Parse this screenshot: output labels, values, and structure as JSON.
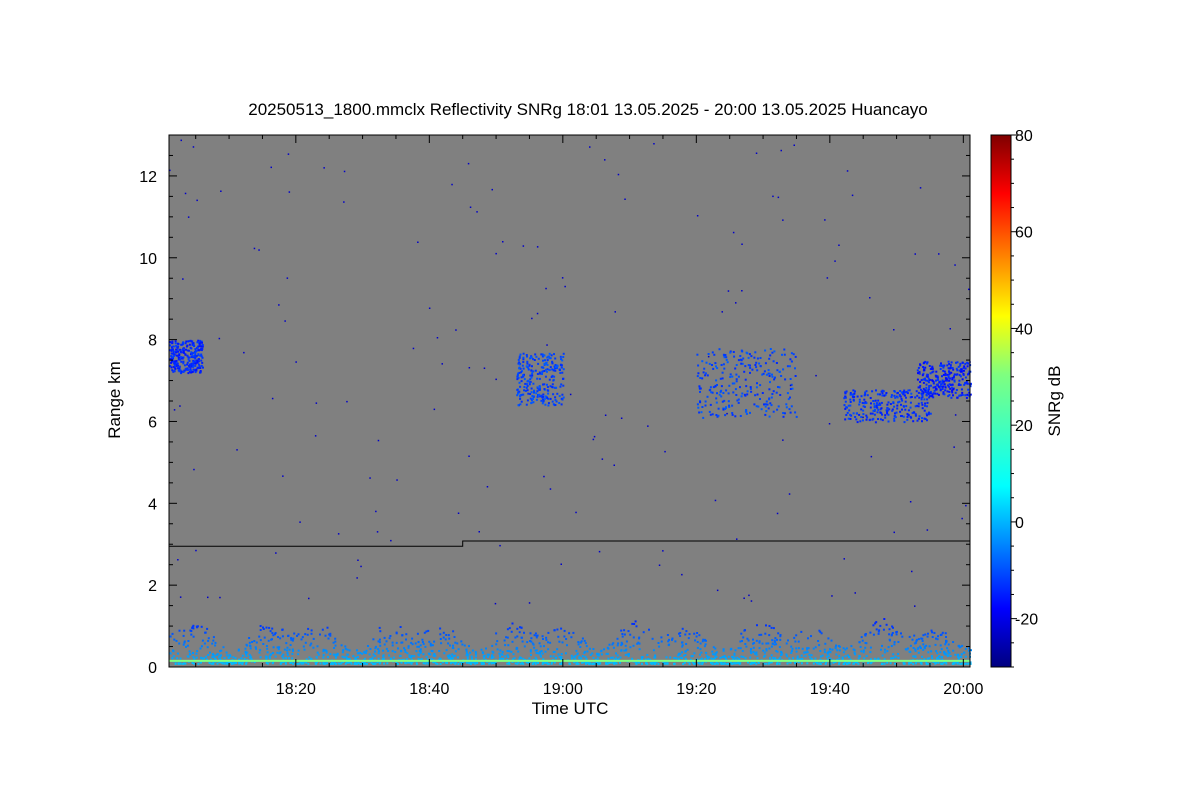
{
  "chart_data": {
    "type": "heatmap",
    "title": "20250513_1800.mmclx Reflectivity SNRg   18:01 13.05.2025 - 20:00 13.05.2025 Huancayo",
    "xlabel": "Time UTC",
    "ylabel": "Range km",
    "colorbar_label": "SNRg dB",
    "xlim": [
      "18:01",
      "20:01"
    ],
    "ylim": [
      0,
      13
    ],
    "x_ticks": [
      "18:20",
      "18:40",
      "19:00",
      "19:20",
      "19:40",
      "20:00"
    ],
    "y_ticks": [
      "0",
      "2",
      "4",
      "6",
      "8",
      "10",
      "12"
    ],
    "colorbar_ticks": [
      "-20",
      "0",
      "20",
      "40",
      "60",
      "80"
    ],
    "colorbar_range": [
      -30,
      80
    ],
    "colormap": "jet",
    "background_color": "#808080",
    "boundary_line": {
      "color": "#000000",
      "segments": [
        {
          "from": "18:01",
          "to": "18:45",
          "range_km": 2.95
        },
        {
          "from": "18:45",
          "to": "20:01",
          "range_km": 3.08
        }
      ]
    },
    "cloud_features": [
      {
        "t_start": "18:01",
        "t_end": "18:06",
        "range_top": 8.0,
        "range_bottom": 7.2,
        "snr_db": -15
      },
      {
        "t_start": "18:53",
        "t_end": "19:00",
        "range_top": 7.7,
        "range_bottom": 6.4,
        "snr_db": -12
      },
      {
        "t_start": "19:20",
        "t_end": "19:35",
        "range_top": 7.8,
        "range_bottom": 6.1,
        "snr_db": -12
      },
      {
        "t_start": "19:42",
        "t_end": "19:55",
        "range_top": 6.8,
        "range_bottom": 6.0,
        "snr_db": -14
      },
      {
        "t_start": "19:53",
        "t_end": "20:01",
        "range_top": 7.5,
        "range_bottom": 6.6,
        "snr_db": -16
      },
      {
        "t_start": "18:01",
        "t_end": "20:01",
        "range_top": 1.0,
        "range_bottom": 0.1,
        "snr_db": -10
      }
    ]
  }
}
